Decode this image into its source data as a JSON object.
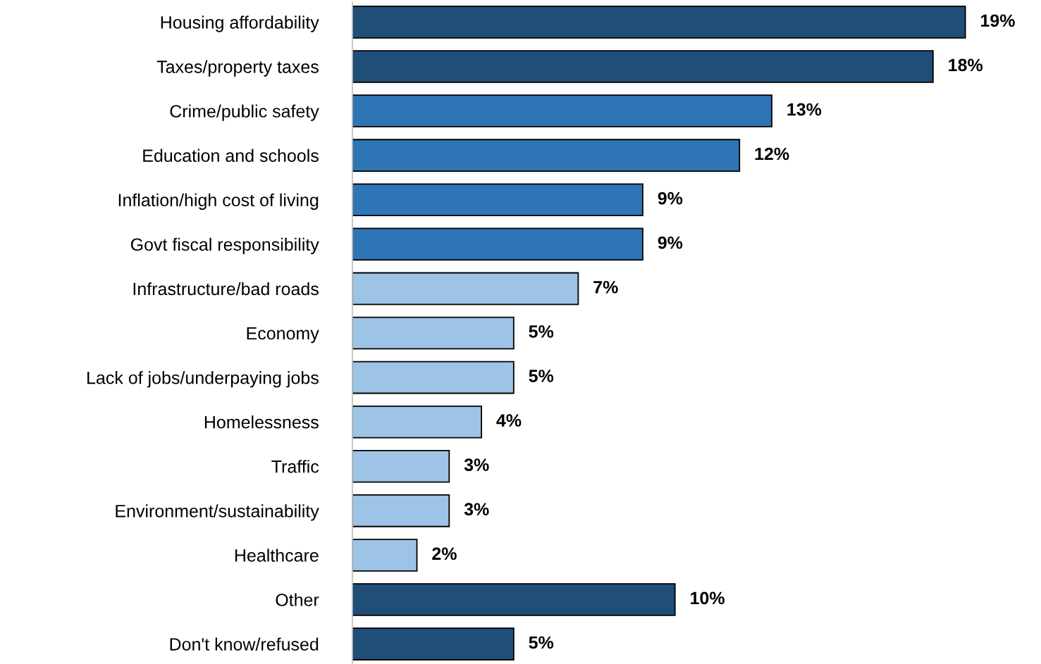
{
  "chart_data": {
    "type": "bar",
    "orientation": "horizontal",
    "categories": [
      "Housing affordability",
      "Taxes/property taxes",
      "Crime/public safety",
      "Education and schools",
      "Inflation/high cost of living",
      "Govt fiscal responsibility",
      "Infrastructure/bad roads",
      "Economy",
      "Lack of jobs/underpaying jobs",
      "Homelessness",
      "Traffic",
      "Environment/sustainability",
      "Healthcare",
      "Other",
      "Don't know/refused"
    ],
    "values": [
      19,
      18,
      13,
      12,
      9,
      9,
      7,
      5,
      5,
      4,
      3,
      3,
      2,
      10,
      5
    ],
    "colors": [
      "#1f4e79",
      "#1f4e79",
      "#2e75b6",
      "#2e75b6",
      "#2e75b6",
      "#2e75b6",
      "#9dc3e6",
      "#9dc3e6",
      "#9dc3e6",
      "#9dc3e6",
      "#9dc3e6",
      "#9dc3e6",
      "#9dc3e6",
      "#1f4e79",
      "#1f4e79"
    ],
    "value_labels": [
      "19%",
      "18%",
      "13%",
      "12%",
      "9%",
      "9%",
      "7%",
      "5%",
      "5%",
      "4%",
      "3%",
      "3%",
      "2%",
      "10%",
      "5%"
    ],
    "grid": false,
    "legend": false
  }
}
